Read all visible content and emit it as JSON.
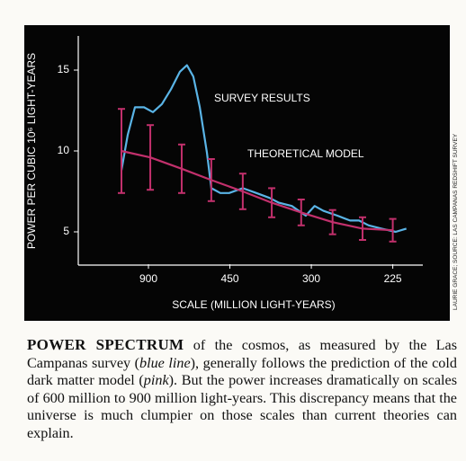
{
  "chart_data": {
    "type": "line",
    "ylabel": "POWER PER CUBIC 10⁶ LIGHT-YEARS",
    "xlabel": "SCALE (MILLION LIGHT-YEARS)",
    "xscale": "reciprocal",
    "xlim": [
      6500,
      206
    ],
    "xticks": [
      900,
      450,
      300,
      225
    ],
    "ylim": [
      3,
      17
    ],
    "yticks": [
      5,
      10,
      15
    ],
    "series": [
      {
        "name": "SURVEY RESULTS",
        "color": "#5ab4e6",
        "x": [
          1346,
          1206,
          1079,
          952,
          853,
          772,
          706,
          649,
          611,
          580,
          552,
          524,
          508,
          478,
          452,
          417,
          387,
          362,
          346,
          326,
          307,
          296,
          286,
          271,
          259,
          251,
          243,
          233,
          223,
          216
        ],
        "values": [
          8.8,
          11.0,
          12.7,
          12.7,
          12.4,
          12.9,
          13.8,
          14.9,
          15.3,
          14.6,
          12.7,
          9.9,
          7.7,
          7.4,
          7.4,
          7.7,
          7.4,
          7.1,
          6.8,
          6.6,
          6.0,
          6.6,
          6.3,
          6.0,
          5.7,
          5.7,
          5.4,
          5.2,
          5.0,
          5.2
        ]
      },
      {
        "name": "THEORETICAL MODEL",
        "color": "#c2306c",
        "x": [
          1346,
          880,
          639,
          508,
          417,
          358,
          313,
          276,
          248,
          225
        ],
        "values": [
          10.0,
          9.6,
          8.9,
          8.2,
          7.5,
          6.8,
          6.2,
          5.6,
          5.2,
          5.1
        ],
        "errors": [
          2.6,
          2.0,
          1.5,
          1.3,
          1.1,
          0.9,
          0.8,
          0.75,
          0.7,
          0.7
        ]
      }
    ]
  },
  "credit": "LAURIE GRACE; SOURCE: LAS CAMPANAS REDSHIFT SURVEY",
  "caption": [
    "POWER SPECTRUM",
    " of the cosmos, as measured by the Las Campanas survey (",
    "blue line",
    "), generally follows the prediction of the cold dark matter model (",
    "pink",
    "). But the power increases dramatically on scales of 600 million to 900 million light-years. This discrepancy means that the universe is much clumpier on those scales than current theories can explain."
  ]
}
